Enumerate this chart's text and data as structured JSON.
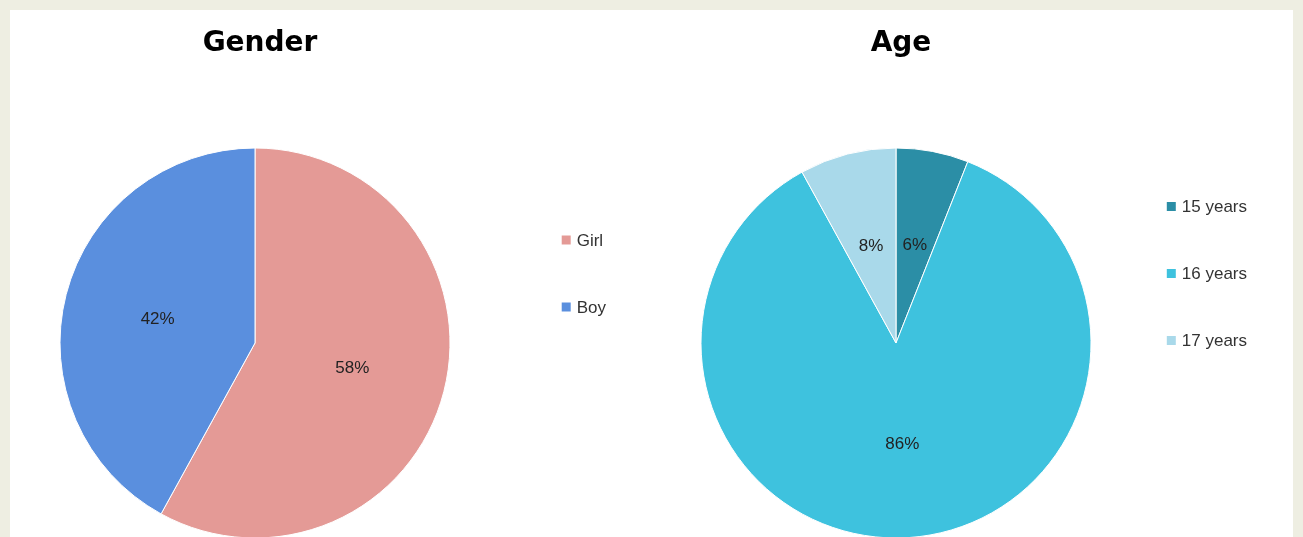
{
  "chart_data": [
    {
      "type": "pie",
      "title": "Gender",
      "categories": [
        "Girl",
        "Boy"
      ],
      "values": [
        58,
        42
      ],
      "colors": [
        "#e49a96",
        "#5a8fde"
      ],
      "value_labels": [
        "58%",
        "42%"
      ],
      "legend": "right"
    },
    {
      "type": "pie",
      "title": "Age",
      "categories": [
        "15 years",
        "16 years",
        "17 years"
      ],
      "values": [
        6,
        86,
        8
      ],
      "colors": [
        "#2b8ea6",
        "#3ec2de",
        "#a9d9ea"
      ],
      "value_labels": [
        "6%",
        "86%",
        "8%"
      ],
      "legend": "right"
    }
  ]
}
